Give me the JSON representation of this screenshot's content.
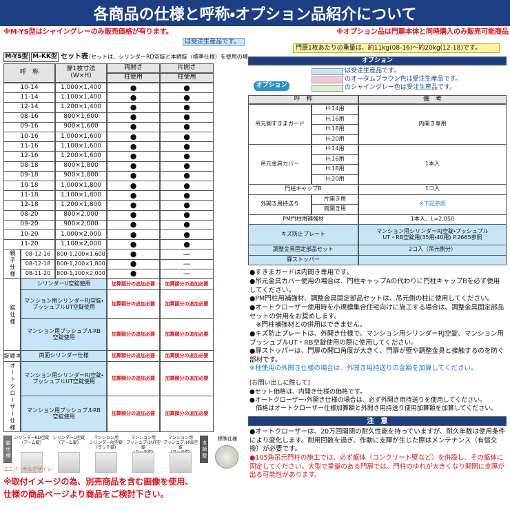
{
  "header": {
    "title": "各商品の仕様と呼称・オプション品紹介について"
  },
  "notes_top": {
    "left": "※M-YS型はシャイングレーのみ販売価格が有ります。",
    "right": "※オプション品は門扉本体と同時購入のみ販売可能商品"
  },
  "legend_left": "は受注生産品です。",
  "weight_note": "門扉1枚あたりの重量は、約11kg(08-16)～約20kg(12-18)です。",
  "set_table": {
    "tags": [
      "M-YS型",
      "M-KK型"
    ],
    "title": "セット表",
    "title_note": "（セットは、シリンダーRD空錠と本締錠（標準仕様）を使用の場合）",
    "headers": [
      "呼　称",
      "扉1枚寸法\n(W×H)",
      "両開き",
      "片開き"
    ],
    "sub_headers": [
      "柱使用",
      "柱使用"
    ],
    "rows": [
      [
        "10-14",
        "1,000×1,400",
        "●",
        "●"
      ],
      [
        "11-14",
        "1,100×1,400",
        "●",
        "●"
      ],
      [
        "12-14",
        "1,200×1,400",
        "●",
        "●"
      ],
      [
        "08-16",
        "800×1,600",
        "●",
        "●"
      ],
      [
        "09-16",
        "900×1,600",
        "●",
        "●"
      ],
      [
        "10-16",
        "1,000×1,600",
        "●",
        "●"
      ],
      [
        "11-16",
        "1,100×1,600",
        "●",
        "●"
      ],
      [
        "12-16",
        "1,200×1,600",
        "●",
        "●"
      ],
      [
        "08-18",
        "800×1,800",
        "●",
        "●"
      ],
      [
        "09-18",
        "900×1,800",
        "●",
        "●"
      ],
      [
        "10-18",
        "1,000×1,800",
        "●",
        "●"
      ],
      [
        "11-18",
        "1,100×1,800",
        "●",
        "●"
      ],
      [
        "12-18",
        "1,200×1,800",
        "●",
        "●"
      ],
      [
        "08-20",
        "800×2,000",
        "●",
        "●"
      ],
      [
        "09-20",
        "900×2,000",
        "●",
        "●"
      ],
      [
        "10-20",
        "1,000×2,000",
        "●",
        "●"
      ],
      [
        "11-20",
        "1,100×2,000",
        "●",
        "●"
      ]
    ],
    "oyako": {
      "label": "親子仕様",
      "rows": [
        [
          "08-12-16",
          "800-1,200×1,600",
          "●",
          "—"
        ],
        [
          "08-12-18",
          "800-1,200×1,800",
          "●",
          "—"
        ],
        [
          "08-11-20",
          "800-1,100×2,000",
          "●",
          "—"
        ]
      ]
    },
    "groups": [
      {
        "label": "錠仕様",
        "rows": [
          [
            "シリンダーU空錠使用",
            "加算額分の追加必要",
            "加算額分の追加必要"
          ],
          [
            "マンション用シリンダーRJ空錠・\nプッシュプルUT空錠使用",
            "加算額分の追加必要",
            "加算額分の追加必要"
          ],
          [
            "マンション用プッシュプルRB\n空錠使用",
            "加算額分の追加必要",
            "加算額分の追加必要"
          ]
        ]
      },
      {
        "label": "本締錠",
        "rows": [
          [
            "両面シリンダー仕様",
            "加算額分の追加必要",
            "加算額分の追加必要"
          ]
        ]
      },
      {
        "label": "オートクローザー仕様",
        "rows": [
          [
            "マンション用シリンダーRJ空錠・\nプッシュプルUT空錠使用",
            "加算額分の追加必要",
            "加算額分の追加必要"
          ],
          [
            "マンション用プッシュプルRB\n空錠使用",
            "加算額分の追加必要",
            "加算額分の追加必要"
          ]
        ]
      }
    ]
  },
  "images": {
    "side_label": "錠仕様",
    "captions": [
      "シリンダーRD空錠\n(アーム錠)",
      "シリンダーU空錠\n(アーム錠)",
      "マンション用\nシリンダーRJ空錠\n(ラッチ錠)",
      "マンション用\nプッシュプルUT空錠\n(ラッチ錠)",
      "マンション用\nプッシュプルRB空錠\n(ラッチ錠)"
    ],
    "honjime_label": "本締錠",
    "honjime_caption": "標準仕様",
    "ud": "ユニバーサルデザイン"
  },
  "footnote_left": [
    "※取付イメージの為、別売商品を含む画像を使用、",
    "仕様の商品ページより商品をご検討下さい。"
  ],
  "options": {
    "title": "オプション",
    "tag": "オプション",
    "legend": [
      "は受注生産品です。",
      "のオータムブラウン色は受注生産品です。",
      "のシャイングレー色は受注生産品です。"
    ],
    "headers": [
      "呼　称",
      "備　考"
    ],
    "rows": [
      {
        "name": "吊元側すきまガード",
        "subs": [
          "H:14用",
          "H:16用",
          "H:18用",
          "H:20用"
        ],
        "remark": "内開き専用"
      },
      {
        "name": "吊元金具カバー",
        "subs": [
          "H:14用",
          "H:16用",
          "H:18用",
          "H:20用"
        ],
        "remark": "1本入"
      },
      {
        "name": "門柱キャップB",
        "remark": "1コ入"
      },
      {
        "name": "外開き用持送り",
        "subs": [
          "片開き用",
          "両開き用"
        ],
        "remark": "※下記参照"
      },
      {
        "name": "PM門柱用補強材",
        "remark": "1本入、L=2,050"
      },
      {
        "name": "キズ防止プレート",
        "remark": "マンション用シリンダーRJ空錠・プッシュプル\nUT・RB空錠用(35用・40用) P.2665参照"
      },
      {
        "name": "調整金具固定部品セット",
        "remark": "2コ入（吊元側分）"
      },
      {
        "name": "扉ストッパー"
      }
    ],
    "notes": [
      "●すきまガードは内開き専用です。",
      "●吊元金具カバー使用の場合は、門柱キャップAの代わりに門柱キャップBを必ず使用してください。",
      "●PM門柱用補強材、調整金具固定部品セットは、吊元側の柱に使用してください。",
      "●オートクローザー使用時を小規模集合住宅向けに施工する場合は、調整金具固定部品セットの併用をお奨めします。",
      "　※門柱補強材との併用はできません。",
      "●キズ防止プレートは、外開き仕様で、マンション用シリンダーRJ空錠、マンション用プッシュプルUT・RB空錠使用の際に使用してください。",
      "●扉ストッパーは、門扉の開口角度が大きく、門扉が壁や調整金具と接触するのを防ぐ部材です。"
    ],
    "note_blue": "※柱使用の外開き仕様の場合は、外開き用持送りの金額を加算してください。"
  },
  "order_notes": {
    "title": "[お問い出しに際して]",
    "items": [
      "●セット価格は、内開き仕様の価格です。",
      "●オートクローザー・外開き仕様の場合は、必ず外開き用持送りを使用してください。",
      "　価格はオートクローザー仕様加算額と外開き用持送り使用加算額を加算してください。"
    ]
  },
  "caution": {
    "title": "注　意",
    "items": [
      "●オートクローザーは、20万回開閉の耐久性能を持っていますが、耐久年数は使用条件により変化します。耐用回数を過ぎ、作動に支障が生じた際はメンテナンス（有償交換）が必要です。",
      "●105角吊元門柱の施工では、必ず躯体（コンクリート壁など）を併設し、その躯体に固定してください。大型で重量のある門扉では、門柱のゆれが大きくなり開閉に支障が出る可能性があります。"
    ]
  }
}
